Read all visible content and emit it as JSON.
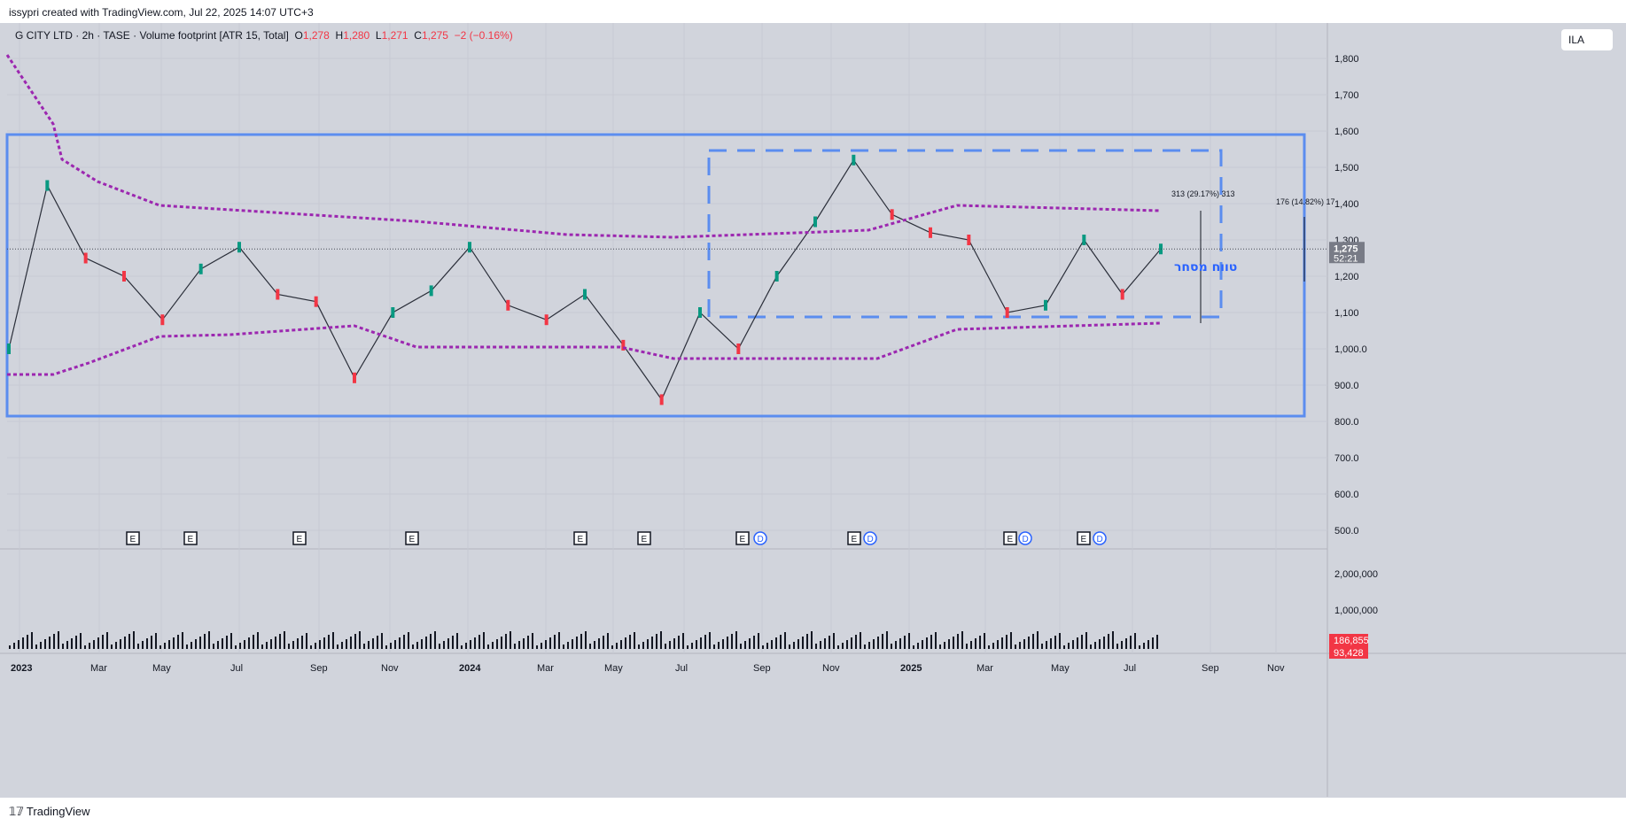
{
  "header": {
    "attribution": "issypri created with TradingView.com, Jul 22, 2025 14:07 UTC+3"
  },
  "legend": {
    "title": "G CITY LTD · 2h · TASE · Volume footprint [ATR 15, Total]",
    "o_label": "O",
    "o": "1,278",
    "h_label": "H",
    "h": "1,280",
    "l_label": "L",
    "l": "1,271",
    "c_label": "C",
    "c": "1,275",
    "change": "−2 (−0.16%)"
  },
  "currency_button": "ILA",
  "footer": {
    "logo_text": "TradingView"
  },
  "colors": {
    "up": "#089981",
    "down": "#f23645",
    "band": "#9c27b0",
    "box": "#5b8def",
    "bg": "#d1d4dc"
  },
  "chart_data": {
    "type": "line",
    "symbol": "G CITY LTD",
    "price_axis": {
      "ticks": [
        "1,800",
        "1,700",
        "1,600",
        "1,500",
        "1,400",
        "1,300",
        "1,200",
        "1,100",
        "1,000.0",
        "900.0",
        "800.0",
        "700.0",
        "600.0",
        "500.0"
      ],
      "ylim": [
        440,
        1850
      ]
    },
    "volume_axis": {
      "ticks": [
        "2,000,000",
        "1,000,000"
      ]
    },
    "time_axis": [
      "2023",
      "Mar",
      "May",
      "Jul",
      "Sep",
      "Nov",
      "2024",
      "Mar",
      "May",
      "Jul",
      "Sep",
      "Nov",
      "2025",
      "Mar",
      "May",
      "Jul",
      "Sep",
      "Nov"
    ],
    "price_series": {
      "name": "G CITY LTD",
      "x": [
        "2023-01",
        "2023-02",
        "2023-03",
        "2023-04",
        "2023-05",
        "2023-06",
        "2023-07",
        "2023-08",
        "2023-09",
        "2023-10",
        "2023-11",
        "2023-12",
        "2024-01",
        "2024-02",
        "2024-03",
        "2024-04",
        "2024-05",
        "2024-06",
        "2024-07",
        "2024-08",
        "2024-09",
        "2024-10",
        "2024-11",
        "2024-12",
        "2025-01",
        "2025-02",
        "2025-03",
        "2025-04",
        "2025-05",
        "2025-06",
        "2025-07"
      ],
      "values": [
        1000,
        1450,
        1250,
        1200,
        1080,
        1220,
        1280,
        1150,
        1130,
        920,
        1100,
        1160,
        1280,
        1120,
        1080,
        1150,
        1010,
        860,
        1100,
        1000,
        1200,
        1350,
        1520,
        1370,
        1320,
        1300,
        1100,
        1120,
        1300,
        1150,
        1275
      ]
    },
    "last_price_label": "1,275",
    "countdown_label": "52:21",
    "volume_labels": [
      "186,855",
      "93,428"
    ],
    "annotations": {
      "measure_1": "313 (29.17%) 313",
      "measure_2": "176 (14.82%) 17",
      "range_text": "טווח מסחר"
    },
    "event_markers": [
      "E",
      "E",
      "E",
      "E",
      "E",
      "E",
      "E",
      "D",
      "E",
      "D",
      "E",
      "D",
      "E",
      "D"
    ]
  }
}
